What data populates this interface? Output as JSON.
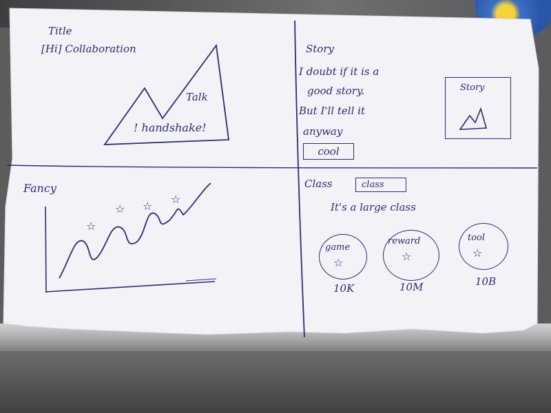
{
  "panel_top_left": {
    "title_label": "Title",
    "collaboration_label": "[Hi] Collaboration",
    "talk_label": "Talk",
    "handshake_label": "! handshake!"
  },
  "panel_top_right": {
    "story_heading": "Story",
    "story_line_1": "I doubt if it is a",
    "story_line_2": "good story.",
    "story_line_3": "But I'll tell it",
    "story_line_4": "anyway",
    "cool_button": "cool",
    "image_caption": "Story"
  },
  "panel_bottom_left": {
    "fancy_label": "Fancy"
  },
  "panel_bottom_right": {
    "class_label": "Class",
    "class_button": "class",
    "large_class_text": "It's a large class",
    "cards": [
      {
        "label": "game",
        "value": "10K",
        "icon": "star-icon"
      },
      {
        "label": "reward",
        "value": "10M",
        "icon": "star-icon"
      },
      {
        "label": "tool",
        "value": "10B",
        "icon": "star-icon"
      }
    ]
  },
  "colors": {
    "ink": "#2b2a7c",
    "paper": "#f3f3f7"
  }
}
